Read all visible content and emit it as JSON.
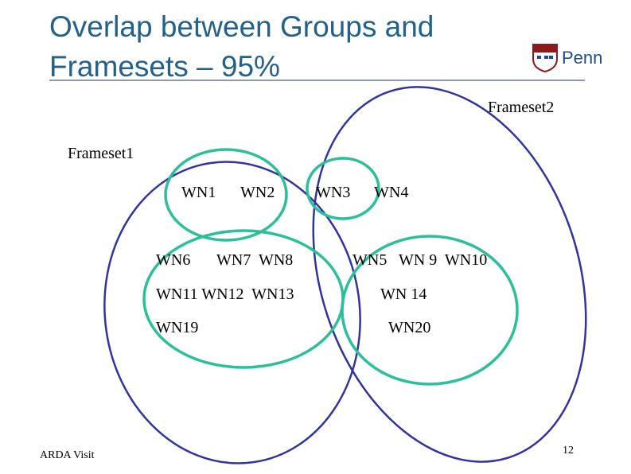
{
  "title": {
    "lines": [
      "Overlap between Groups and",
      "Framesets – 95%"
    ]
  },
  "logo": {
    "text": "Penn"
  },
  "framesets": [
    {
      "label": "Frameset1"
    },
    {
      "label": "Frameset2"
    }
  ],
  "groups": [
    {
      "labels": [
        "WN1",
        "WN2"
      ]
    },
    {
      "labels": [
        "WN3",
        "WN4"
      ]
    },
    {
      "labels": [
        "WN6",
        "WN7  WN8",
        "WN11 WN12  WN13",
        "WN19"
      ]
    },
    {
      "labels": [
        "WN5   WN 9  WN10",
        "WN 14",
        "WN20"
      ]
    }
  ],
  "footer": {
    "left": "ARDA Visit",
    "page": "12"
  }
}
